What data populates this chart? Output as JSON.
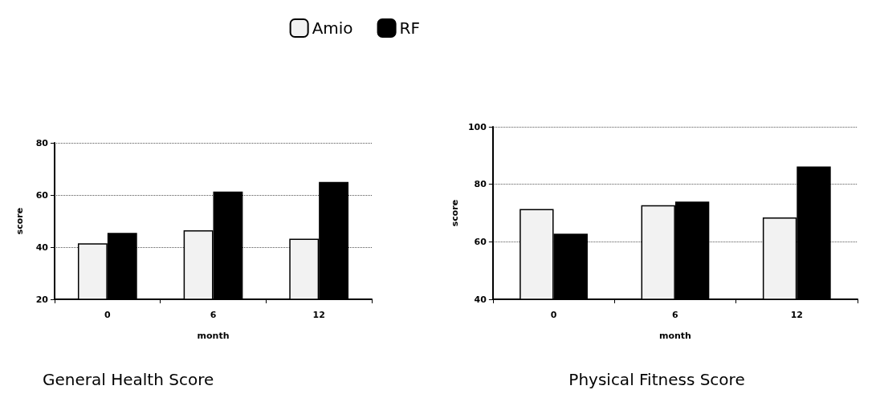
{
  "chart_data": [
    {
      "type": "bar",
      "title": "General Health Score",
      "xlabel": "month",
      "ylabel": "score",
      "categories": [
        "0",
        "6",
        "12"
      ],
      "series": [
        {
          "name": "Amio",
          "color": "#f2f2f2",
          "values": [
            41.5,
            46.5,
            43.2
          ]
        },
        {
          "name": "RF",
          "color": "#000000",
          "values": [
            45.5,
            61.3,
            65
          ]
        }
      ],
      "ylim": [
        20,
        80
      ],
      "yticks": [
        20,
        40,
        60,
        80
      ],
      "grid": "y",
      "legend": "top"
    },
    {
      "type": "bar",
      "title": "Physical Fitness Score",
      "xlabel": "month",
      "ylabel": "score",
      "categories": [
        "0",
        "6",
        "12"
      ],
      "series": [
        {
          "color": "#f2f2f2",
          "values": [
            71.4,
            72.7,
            68.5
          ]
        },
        {
          "color": "#000000",
          "values": [
            62.8,
            74,
            86.2
          ]
        }
      ],
      "ylim": [
        40,
        100
      ],
      "yticks": [
        40,
        60,
        80,
        100
      ],
      "grid": "y",
      "legend": false
    }
  ]
}
